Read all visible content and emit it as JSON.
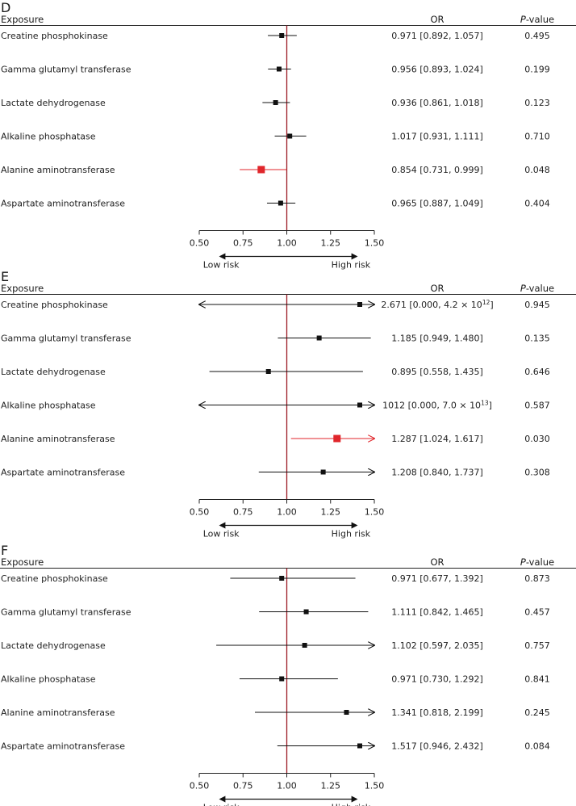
{
  "header": {
    "exposure": "Exposure",
    "or": "OR",
    "p_prefix": "P",
    "p_suffix": "-value"
  },
  "axis_ticks": [
    "0.50",
    "0.75",
    "1.00",
    "1.25",
    "1.50"
  ],
  "risk_labels": {
    "low": "Low risk",
    "high": "High risk"
  },
  "colors": {
    "normal": "#111111",
    "significant": "#e0262b",
    "reference": "#9b1b24"
  },
  "chart_data": [
    {
      "type": "forest",
      "panel": "D",
      "xlim": [
        0.5,
        1.5
      ],
      "reference": 1.0,
      "rows": [
        {
          "exposure": "Creatine phosphokinase",
          "or": 0.971,
          "lo": 0.892,
          "hi": 1.057,
          "or_text": "0.971 [0.892, 1.057]",
          "p": "0.495",
          "significant": false
        },
        {
          "exposure": "Gamma glutamyl transferase",
          "or": 0.956,
          "lo": 0.893,
          "hi": 1.024,
          "or_text": "0.956 [0.893, 1.024]",
          "p": "0.199",
          "significant": false
        },
        {
          "exposure": "Lactate dehydrogenase",
          "or": 0.936,
          "lo": 0.861,
          "hi": 1.018,
          "or_text": "0.936 [0.861, 1.018]",
          "p": "0.123",
          "significant": false
        },
        {
          "exposure": "Alkaline phosphatase",
          "or": 1.017,
          "lo": 0.931,
          "hi": 1.111,
          "or_text": "1.017 [0.931, 1.111]",
          "p": "0.710",
          "significant": false
        },
        {
          "exposure": "Alanine aminotransferase",
          "or": 0.854,
          "lo": 0.731,
          "hi": 0.999,
          "or_text": "0.854 [0.731, 0.999]",
          "p": "0.048",
          "significant": true
        },
        {
          "exposure": "Aspartate aminotransferase",
          "or": 0.965,
          "lo": 0.887,
          "hi": 1.049,
          "or_text": "0.965 [0.887, 1.049]",
          "p": "0.404",
          "significant": false
        }
      ]
    },
    {
      "type": "forest",
      "panel": "E",
      "xlim": [
        0.5,
        1.5
      ],
      "reference": 1.0,
      "rows": [
        {
          "exposure": "Creatine phosphokinase",
          "or": 2.671,
          "lo": 0.0,
          "hi": 4200000000000.0,
          "or_text": "2.671 [0.000, 4.2 × 10",
          "or_sup": "12",
          "or_tail": "]",
          "p": "0.945",
          "significant": false
        },
        {
          "exposure": "Gamma glutamyl transferase",
          "or": 1.185,
          "lo": 0.949,
          "hi": 1.48,
          "or_text": "1.185 [0.949, 1.480]",
          "p": "0.135",
          "significant": false
        },
        {
          "exposure": "Lactate dehydrogenase",
          "or": 0.895,
          "lo": 0.558,
          "hi": 1.435,
          "or_text": "0.895 [0.558, 1.435]",
          "p": "0.646",
          "significant": false
        },
        {
          "exposure": "Alkaline phosphatase",
          "or": 1012,
          "lo": 0.0,
          "hi": 70000000000000.0,
          "or_text": "1012 [0.000, 7.0 × 10",
          "or_sup": "13",
          "or_tail": "]",
          "p": "0.587",
          "significant": false
        },
        {
          "exposure": "Alanine aminotransferase",
          "or": 1.287,
          "lo": 1.024,
          "hi": 1.617,
          "or_text": "1.287 [1.024, 1.617]",
          "p": "0.030",
          "significant": true
        },
        {
          "exposure": "Aspartate aminotransferase",
          "or": 1.208,
          "lo": 0.84,
          "hi": 1.737,
          "or_text": "1.208 [0.840, 1.737]",
          "p": "0.308",
          "significant": false
        }
      ]
    },
    {
      "type": "forest",
      "panel": "F",
      "xlim": [
        0.5,
        1.5
      ],
      "reference": 1.0,
      "rows": [
        {
          "exposure": "Creatine phosphokinase",
          "or": 0.971,
          "lo": 0.677,
          "hi": 1.392,
          "or_text": "0.971 [0.677, 1.392]",
          "p": "0.873",
          "significant": false
        },
        {
          "exposure": "Gamma glutamyl transferase",
          "or": 1.111,
          "lo": 0.842,
          "hi": 1.465,
          "or_text": "1.111 [0.842, 1.465]",
          "p": "0.457",
          "significant": false
        },
        {
          "exposure": "Lactate dehydrogenase",
          "or": 1.102,
          "lo": 0.597,
          "hi": 2.035,
          "or_text": "1.102 [0.597, 2.035]",
          "p": "0.757",
          "significant": false
        },
        {
          "exposure": "Alkaline phosphatase",
          "or": 0.971,
          "lo": 0.73,
          "hi": 1.292,
          "or_text": "0.971 [0.730, 1.292]",
          "p": "0.841",
          "significant": false
        },
        {
          "exposure": "Alanine aminotransferase",
          "or": 1.341,
          "lo": 0.818,
          "hi": 2.199,
          "or_text": "1.341 [0.818, 2.199]",
          "p": "0.245",
          "significant": false
        },
        {
          "exposure": "Aspartate aminotransferase",
          "or": 1.517,
          "lo": 0.946,
          "hi": 2.432,
          "or_text": "1.517 [0.946, 2.432]",
          "p": "0.084",
          "significant": false
        }
      ]
    }
  ]
}
